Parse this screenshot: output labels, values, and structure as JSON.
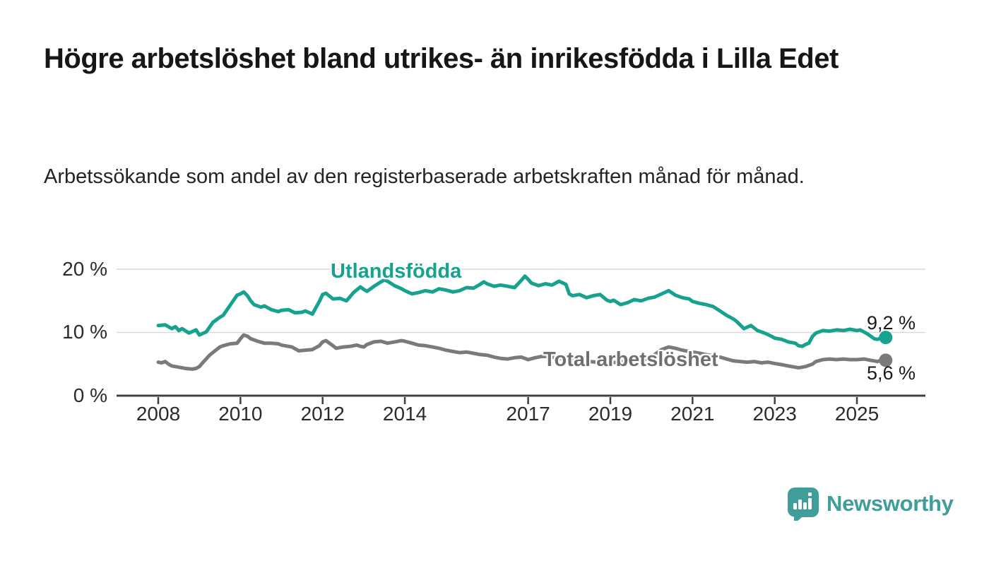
{
  "header": {
    "title": "Högre arbetslöshet bland utrikes- än inrikesfödda i Lilla Edet",
    "subtitle": "Arbetssökande som andel av den registerbaserade arbetskraften månad för månad."
  },
  "chart_data": {
    "type": "line",
    "unit": "%",
    "grid": "horizontal",
    "x_axis": {
      "ticks": [
        {
          "value": 2008,
          "label": "2008"
        },
        {
          "value": 2010,
          "label": "2010"
        },
        {
          "value": 2012,
          "label": "2012"
        },
        {
          "value": 2014,
          "label": "2014"
        },
        {
          "value": 2017,
          "label": "2017"
        },
        {
          "value": 2019,
          "label": "2019"
        },
        {
          "value": 2021,
          "label": "2021"
        },
        {
          "value": 2023,
          "label": "2023"
        },
        {
          "value": 2025,
          "label": "2025"
        }
      ],
      "range": [
        2007,
        2026
      ]
    },
    "y_axis": {
      "ticks": [
        {
          "value": 20,
          "label": "20 %"
        },
        {
          "value": 10,
          "label": "10 %"
        },
        {
          "value": 0,
          "label": "0 %"
        }
      ],
      "range": [
        0,
        20
      ]
    },
    "series": [
      {
        "name": "Utlandsfödda",
        "color": "#17a28f",
        "end_label": "9,2 %",
        "end_value": 9.2,
        "points": [
          [
            2008.0,
            11.1
          ],
          [
            2008.17,
            11.2
          ],
          [
            2008.33,
            10.6
          ],
          [
            2008.42,
            10.9
          ],
          [
            2008.5,
            10.3
          ],
          [
            2008.58,
            10.6
          ],
          [
            2008.75,
            9.9
          ],
          [
            2008.92,
            10.4
          ],
          [
            2009.0,
            9.6
          ],
          [
            2009.17,
            10.1
          ],
          [
            2009.33,
            11.6
          ],
          [
            2009.5,
            12.4
          ],
          [
            2009.58,
            12.7
          ],
          [
            2009.75,
            14.3
          ],
          [
            2009.92,
            15.9
          ],
          [
            2010.0,
            16.1
          ],
          [
            2010.08,
            16.4
          ],
          [
            2010.17,
            15.8
          ],
          [
            2010.25,
            15.0
          ],
          [
            2010.33,
            14.4
          ],
          [
            2010.5,
            14.0
          ],
          [
            2010.58,
            14.2
          ],
          [
            2010.75,
            13.6
          ],
          [
            2010.92,
            13.3
          ],
          [
            2011.0,
            13.5
          ],
          [
            2011.17,
            13.6
          ],
          [
            2011.33,
            13.1
          ],
          [
            2011.5,
            13.2
          ],
          [
            2011.58,
            13.4
          ],
          [
            2011.75,
            12.9
          ],
          [
            2011.92,
            14.9
          ],
          [
            2012.0,
            16.0
          ],
          [
            2012.08,
            16.2
          ],
          [
            2012.25,
            15.3
          ],
          [
            2012.42,
            15.4
          ],
          [
            2012.58,
            15.0
          ],
          [
            2012.75,
            16.3
          ],
          [
            2012.92,
            17.2
          ],
          [
            2013.0,
            16.8
          ],
          [
            2013.08,
            16.5
          ],
          [
            2013.25,
            17.3
          ],
          [
            2013.42,
            18.0
          ],
          [
            2013.5,
            18.3
          ],
          [
            2013.58,
            18.1
          ],
          [
            2013.75,
            17.4
          ],
          [
            2013.92,
            16.9
          ],
          [
            2014.0,
            16.6
          ],
          [
            2014.17,
            16.1
          ],
          [
            2014.33,
            16.3
          ],
          [
            2014.5,
            16.6
          ],
          [
            2014.67,
            16.4
          ],
          [
            2014.83,
            16.9
          ],
          [
            2015.0,
            16.7
          ],
          [
            2015.17,
            16.4
          ],
          [
            2015.33,
            16.6
          ],
          [
            2015.5,
            17.1
          ],
          [
            2015.67,
            17.0
          ],
          [
            2015.83,
            17.6
          ],
          [
            2015.92,
            18.0
          ],
          [
            2016.0,
            17.7
          ],
          [
            2016.17,
            17.3
          ],
          [
            2016.33,
            17.5
          ],
          [
            2016.5,
            17.3
          ],
          [
            2016.67,
            17.1
          ],
          [
            2016.83,
            18.2
          ],
          [
            2016.92,
            18.9
          ],
          [
            2017.0,
            18.4
          ],
          [
            2017.08,
            17.8
          ],
          [
            2017.25,
            17.4
          ],
          [
            2017.42,
            17.7
          ],
          [
            2017.58,
            17.5
          ],
          [
            2017.75,
            18.1
          ],
          [
            2017.92,
            17.6
          ],
          [
            2018.0,
            16.1
          ],
          [
            2018.08,
            15.8
          ],
          [
            2018.25,
            16.0
          ],
          [
            2018.42,
            15.5
          ],
          [
            2018.58,
            15.8
          ],
          [
            2018.75,
            16.0
          ],
          [
            2018.92,
            15.1
          ],
          [
            2019.0,
            14.9
          ],
          [
            2019.08,
            15.1
          ],
          [
            2019.25,
            14.4
          ],
          [
            2019.42,
            14.7
          ],
          [
            2019.58,
            15.2
          ],
          [
            2019.75,
            15.0
          ],
          [
            2019.92,
            15.4
          ],
          [
            2020.08,
            15.6
          ],
          [
            2020.25,
            16.1
          ],
          [
            2020.42,
            16.6
          ],
          [
            2020.58,
            15.9
          ],
          [
            2020.75,
            15.5
          ],
          [
            2020.92,
            15.3
          ],
          [
            2021.0,
            14.9
          ],
          [
            2021.17,
            14.6
          ],
          [
            2021.33,
            14.4
          ],
          [
            2021.5,
            14.1
          ],
          [
            2021.67,
            13.4
          ],
          [
            2021.83,
            12.7
          ],
          [
            2022.0,
            12.1
          ],
          [
            2022.08,
            11.7
          ],
          [
            2022.25,
            10.6
          ],
          [
            2022.42,
            11.1
          ],
          [
            2022.58,
            10.3
          ],
          [
            2022.75,
            9.9
          ],
          [
            2022.92,
            9.4
          ],
          [
            2023.0,
            9.1
          ],
          [
            2023.17,
            8.9
          ],
          [
            2023.33,
            8.5
          ],
          [
            2023.5,
            8.3
          ],
          [
            2023.58,
            7.9
          ],
          [
            2023.67,
            7.8
          ],
          [
            2023.75,
            8.1
          ],
          [
            2023.83,
            8.3
          ],
          [
            2023.92,
            9.4
          ],
          [
            2024.0,
            9.9
          ],
          [
            2024.17,
            10.3
          ],
          [
            2024.33,
            10.2
          ],
          [
            2024.5,
            10.4
          ],
          [
            2024.67,
            10.3
          ],
          [
            2024.83,
            10.5
          ],
          [
            2025.0,
            10.3
          ],
          [
            2025.08,
            10.4
          ],
          [
            2025.25,
            9.8
          ],
          [
            2025.42,
            9.0
          ],
          [
            2025.5,
            8.9
          ],
          [
            2025.58,
            9.1
          ],
          [
            2025.7,
            9.2
          ]
        ]
      },
      {
        "name": "Total arbetslöshet",
        "color": "#7a7a7a",
        "end_label": "5,6 %",
        "end_value": 5.6,
        "points": [
          [
            2008.0,
            5.3
          ],
          [
            2008.08,
            5.2
          ],
          [
            2008.17,
            5.4
          ],
          [
            2008.25,
            5.0
          ],
          [
            2008.33,
            4.7
          ],
          [
            2008.5,
            4.5
          ],
          [
            2008.67,
            4.3
          ],
          [
            2008.83,
            4.2
          ],
          [
            2008.92,
            4.3
          ],
          [
            2009.0,
            4.6
          ],
          [
            2009.08,
            5.2
          ],
          [
            2009.25,
            6.4
          ],
          [
            2009.42,
            7.3
          ],
          [
            2009.5,
            7.7
          ],
          [
            2009.58,
            7.9
          ],
          [
            2009.75,
            8.2
          ],
          [
            2009.92,
            8.3
          ],
          [
            2010.0,
            9.0
          ],
          [
            2010.08,
            9.6
          ],
          [
            2010.17,
            9.4
          ],
          [
            2010.25,
            9.0
          ],
          [
            2010.42,
            8.6
          ],
          [
            2010.58,
            8.3
          ],
          [
            2010.75,
            8.3
          ],
          [
            2010.92,
            8.2
          ],
          [
            2011.0,
            8.0
          ],
          [
            2011.08,
            7.9
          ],
          [
            2011.25,
            7.7
          ],
          [
            2011.42,
            7.1
          ],
          [
            2011.58,
            7.2
          ],
          [
            2011.75,
            7.3
          ],
          [
            2011.92,
            7.9
          ],
          [
            2012.0,
            8.5
          ],
          [
            2012.08,
            8.7
          ],
          [
            2012.25,
            7.9
          ],
          [
            2012.33,
            7.5
          ],
          [
            2012.5,
            7.7
          ],
          [
            2012.67,
            7.8
          ],
          [
            2012.83,
            8.0
          ],
          [
            2012.92,
            7.8
          ],
          [
            2013.0,
            7.7
          ],
          [
            2013.08,
            8.1
          ],
          [
            2013.25,
            8.5
          ],
          [
            2013.42,
            8.6
          ],
          [
            2013.58,
            8.3
          ],
          [
            2013.75,
            8.5
          ],
          [
            2013.92,
            8.7
          ],
          [
            2014.0,
            8.6
          ],
          [
            2014.17,
            8.3
          ],
          [
            2014.33,
            8.0
          ],
          [
            2014.5,
            7.9
          ],
          [
            2014.67,
            7.7
          ],
          [
            2014.83,
            7.5
          ],
          [
            2015.0,
            7.2
          ],
          [
            2015.17,
            7.0
          ],
          [
            2015.33,
            6.8
          ],
          [
            2015.5,
            6.9
          ],
          [
            2015.67,
            6.7
          ],
          [
            2015.83,
            6.5
          ],
          [
            2016.0,
            6.4
          ],
          [
            2016.17,
            6.1
          ],
          [
            2016.33,
            5.9
          ],
          [
            2016.5,
            5.8
          ],
          [
            2016.67,
            6.0
          ],
          [
            2016.83,
            6.1
          ],
          [
            2016.92,
            5.9
          ],
          [
            2017.0,
            5.7
          ],
          [
            2017.17,
            6.0
          ],
          [
            2017.33,
            6.2
          ],
          [
            2017.5,
            6.2
          ],
          [
            2017.67,
            6.0
          ],
          [
            2017.83,
            5.8
          ],
          [
            2018.0,
            5.6
          ],
          [
            2018.17,
            5.5
          ],
          [
            2018.33,
            5.4
          ],
          [
            2018.5,
            5.4
          ],
          [
            2018.67,
            5.3
          ],
          [
            2018.83,
            5.4
          ],
          [
            2019.0,
            5.2
          ],
          [
            2019.17,
            5.3
          ],
          [
            2019.33,
            5.4
          ],
          [
            2019.5,
            5.4
          ],
          [
            2019.67,
            5.5
          ],
          [
            2019.83,
            5.7
          ],
          [
            2020.0,
            6.0
          ],
          [
            2020.08,
            6.5
          ],
          [
            2020.25,
            7.3
          ],
          [
            2020.42,
            7.7
          ],
          [
            2020.58,
            7.5
          ],
          [
            2020.75,
            7.2
          ],
          [
            2020.92,
            7.0
          ],
          [
            2021.0,
            6.9
          ],
          [
            2021.17,
            6.7
          ],
          [
            2021.33,
            6.5
          ],
          [
            2021.5,
            6.3
          ],
          [
            2021.67,
            6.1
          ],
          [
            2021.83,
            5.8
          ],
          [
            2022.0,
            5.5
          ],
          [
            2022.17,
            5.4
          ],
          [
            2022.33,
            5.3
          ],
          [
            2022.5,
            5.4
          ],
          [
            2022.67,
            5.2
          ],
          [
            2022.83,
            5.3
          ],
          [
            2023.0,
            5.1
          ],
          [
            2023.17,
            4.9
          ],
          [
            2023.33,
            4.7
          ],
          [
            2023.5,
            4.5
          ],
          [
            2023.58,
            4.4
          ],
          [
            2023.75,
            4.6
          ],
          [
            2023.92,
            5.0
          ],
          [
            2024.0,
            5.4
          ],
          [
            2024.17,
            5.7
          ],
          [
            2024.33,
            5.8
          ],
          [
            2024.5,
            5.7
          ],
          [
            2024.67,
            5.8
          ],
          [
            2024.83,
            5.7
          ],
          [
            2025.0,
            5.7
          ],
          [
            2025.17,
            5.8
          ],
          [
            2025.33,
            5.6
          ],
          [
            2025.42,
            5.5
          ],
          [
            2025.5,
            5.4
          ],
          [
            2025.58,
            5.6
          ],
          [
            2025.7,
            5.6
          ]
        ]
      }
    ]
  },
  "colors": {
    "accent_teal": "#17a28f",
    "line_gray": "#7a7a7a",
    "grid": "#d9d9d9",
    "axis": "#3f3f3f",
    "logo_teal": "#3f9e9a"
  },
  "branding": {
    "logo_text": "Newsworthy",
    "logo_icon": "newsworthy-speech-bubble-chart-icon"
  }
}
